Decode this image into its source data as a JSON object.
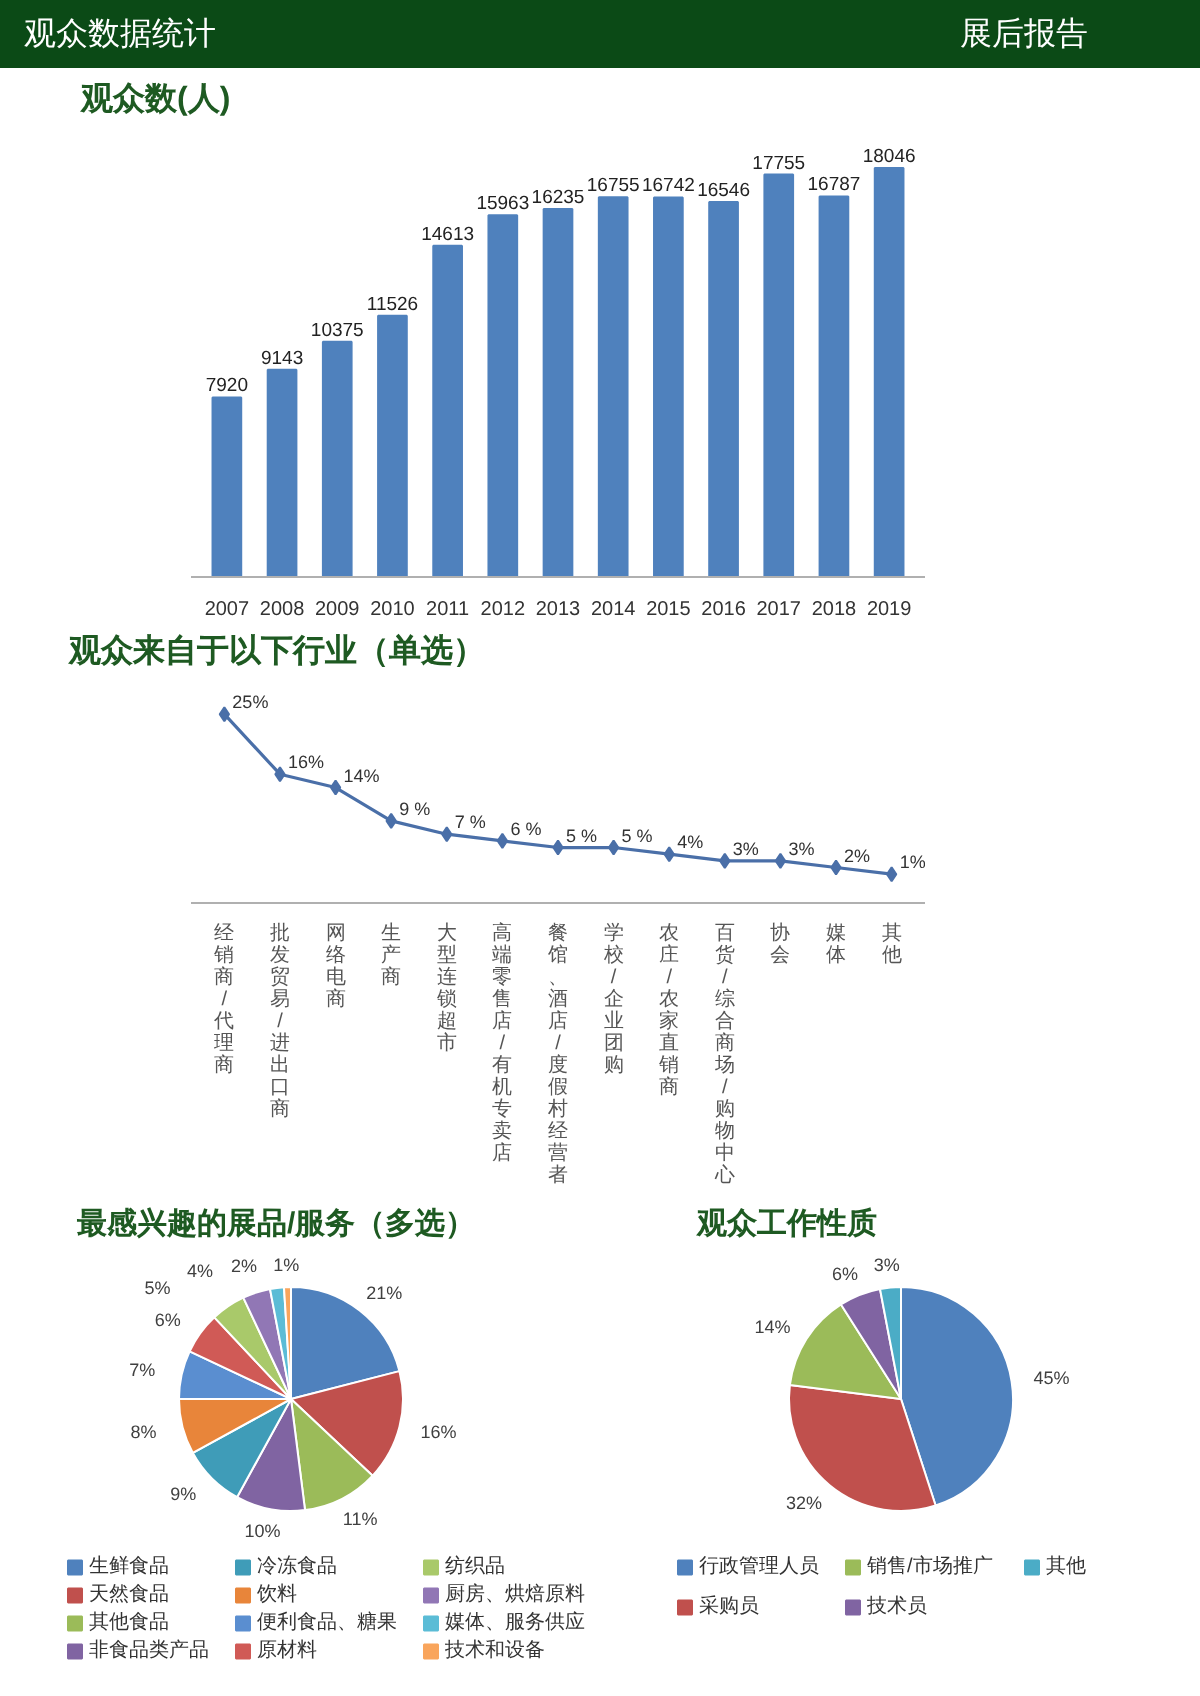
{
  "chart_data": [
    {
      "type": "bar",
      "title": "观众数(人)",
      "annotations": [
        "观众数据统计",
        "展后报告"
      ],
      "categories": [
        "2007",
        "2008",
        "2009",
        "2010",
        "2011",
        "2012",
        "2013",
        "2014",
        "2015",
        "2016",
        "2017",
        "2018",
        "2019"
      ],
      "values": [
        7920,
        9143,
        10375,
        11526,
        14613,
        15963,
        16235,
        16755,
        16742,
        16546,
        17755,
        16787,
        18046
      ],
      "color": "#4f81bd",
      "data_labels": true,
      "tick_labels": "x"
    },
    {
      "type": "line",
      "title": "观众来自于以下行业（单选）",
      "categories": [
        "经销商/代理商",
        "批发贸易/进出口商",
        "网络电商",
        "生产商",
        "大型连锁超市",
        "高端零售店/有机专卖店",
        "餐馆、酒店/度假村经营者",
        "学校/企业团购",
        "农庄/农家直销商",
        "百货/综合商场/购物中心",
        "协会",
        "媒体",
        "其他"
      ],
      "values": [
        25,
        16,
        14,
        9,
        7,
        6,
        5,
        5,
        4,
        3,
        3,
        2,
        1
      ],
      "value_labels": [
        "25%",
        "16%",
        "14%",
        "9 %",
        "7 %",
        "6 %",
        "5 %",
        "5 %",
        "4%",
        "3%",
        "3%",
        "2%",
        "1%"
      ],
      "color": "#4a6fa8",
      "marker": "diamond",
      "tick_labels": "x"
    },
    {
      "type": "pie",
      "title": "最感兴趣的展品/服务（多选）",
      "categories": [
        "生鲜食品",
        "天然食品",
        "其他食品",
        "非食品类产品",
        "冷冻食品",
        "饮料",
        "便利食品、糖果",
        "原材料",
        "纺织品",
        "厨房、烘焙原料",
        "媒体、服务供应",
        "技术和设备"
      ],
      "values": [
        21,
        16,
        11,
        10,
        9,
        8,
        7,
        6,
        5,
        4,
        2,
        1
      ],
      "value_labels": [
        "21%",
        "16%",
        "11%",
        "10%",
        "9%",
        "8%",
        "7%",
        "6%",
        "5%",
        "4%",
        "2%",
        "1%"
      ],
      "colors": [
        "#4f81bd",
        "#c0504d",
        "#9bbb59",
        "#8064a2",
        "#3f9cb8",
        "#e8853a",
        "#5a8ed0",
        "#d05a56",
        "#a9c96a",
        "#9177b5",
        "#5bbcd6",
        "#f9a55c"
      ],
      "legend": "bottom"
    },
    {
      "type": "pie",
      "title": "观众工作性质",
      "categories": [
        "行政管理人员",
        "采购员",
        "销售/市场推广",
        "技术员",
        "其他"
      ],
      "values": [
        45,
        32,
        14,
        6,
        3
      ],
      "value_labels": [
        "45%",
        "32%",
        "14%",
        "6%",
        "3%"
      ],
      "colors": [
        "#4f81bd",
        "#c0504d",
        "#9bbb59",
        "#8064a2",
        "#4bacc6"
      ],
      "legend": "bottom"
    }
  ]
}
